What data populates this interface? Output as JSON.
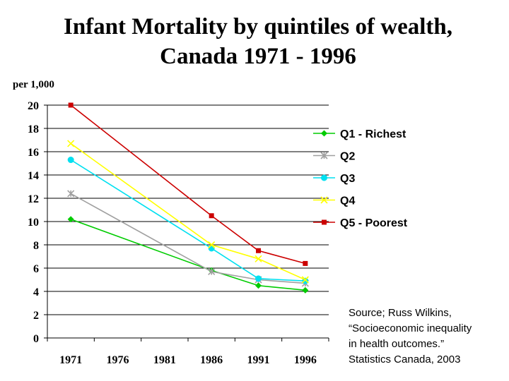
{
  "title_lines": [
    "Infant Mortality by quintiles of wealth,",
    "Canada 1971 - 1996"
  ],
  "source_lines": [
    "Source; Russ Wilkins,",
    "“Socioeconomic inequality",
    "in health outcomes.”",
    "Statistics Canada, 2003"
  ],
  "chart_data": {
    "type": "line",
    "title": "Infant Mortality by quintiles of wealth, Canada 1971 - 1996",
    "ylabel": "per 1,000",
    "xlabel": "",
    "categories": [
      "1971",
      "1976",
      "1981",
      "1986",
      "1991",
      "1996"
    ],
    "ylim": [
      0,
      20
    ],
    "yticks": [
      "0",
      "2",
      "4",
      "6",
      "8",
      "10",
      "12",
      "14",
      "16",
      "18",
      "20"
    ],
    "grid": true,
    "legend_position": "right",
    "series": [
      {
        "name": "Q1 - Richest",
        "color": "#00cc00",
        "marker": "diamond",
        "values": [
          10.2,
          null,
          null,
          5.8,
          4.5,
          4.1
        ]
      },
      {
        "name": "Q2",
        "color": "#a0a0a0",
        "marker": "star",
        "values": [
          12.4,
          null,
          null,
          5.7,
          5.0,
          4.7
        ]
      },
      {
        "name": "Q3",
        "color": "#00e0f0",
        "marker": "circle",
        "values": [
          15.3,
          null,
          null,
          7.7,
          5.1,
          4.9
        ]
      },
      {
        "name": "Q4",
        "color": "#ffff00",
        "marker": "x",
        "values": [
          16.7,
          null,
          null,
          8.0,
          6.8,
          5.0
        ]
      },
      {
        "name": "Q5 - Poorest",
        "color": "#cc0000",
        "marker": "square",
        "values": [
          20.0,
          null,
          null,
          10.5,
          7.5,
          6.4
        ]
      }
    ]
  }
}
